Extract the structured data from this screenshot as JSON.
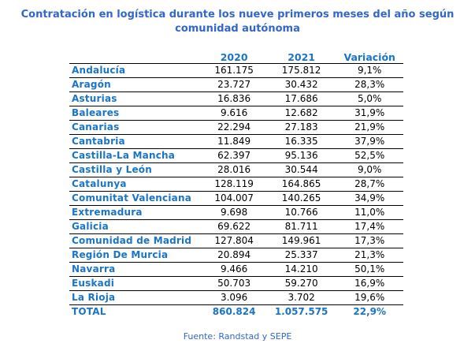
{
  "title": "Contratación en logística durante los nueve primeros meses del año según comunidad autónoma",
  "headers": [
    "",
    "2020",
    "2021",
    "Variación"
  ],
  "rows": [
    [
      "Andalucía",
      "161.175",
      "175.812",
      "9,1%"
    ],
    [
      "Aragón",
      "23.727",
      "30.432",
      "28,3%"
    ],
    [
      "Asturias",
      "16.836",
      "17.686",
      "5,0%"
    ],
    [
      "Baleares",
      "9.616",
      "12.682",
      "31,9%"
    ],
    [
      "Canarias",
      "22.294",
      "27.183",
      "21,9%"
    ],
    [
      "Cantabria",
      "11.849",
      "16.335",
      "37,9%"
    ],
    [
      "Castilla-La Mancha",
      "62.397",
      "95.136",
      "52,5%"
    ],
    [
      "Castilla y León",
      "28.016",
      "30.544",
      "9,0%"
    ],
    [
      "Catalunya",
      "128.119",
      "164.865",
      "28,7%"
    ],
    [
      "Comunitat Valenciana",
      "104.007",
      "140.265",
      "34,9%"
    ],
    [
      "Extremadura",
      "9.698",
      "10.766",
      "11,0%"
    ],
    [
      "Galicia",
      "69.622",
      "81.711",
      "17,4%"
    ],
    [
      "Comunidad de Madrid",
      "127.804",
      "149.961",
      "17,3%"
    ],
    [
      "Región De Murcia",
      "20.894",
      "25.337",
      "21,3%"
    ],
    [
      "Navarra",
      "9.466",
      "14.210",
      "50,1%"
    ],
    [
      "Euskadi",
      "50.703",
      "59.270",
      "16,9%"
    ],
    [
      "La Rioja",
      "3.096",
      "3.702",
      "19,6%"
    ]
  ],
  "total": [
    "TOTAL",
    "860.824",
    "1.057.575",
    "22,9%"
  ],
  "source": "Fuente: Randstad y SEPE",
  "colors": {
    "title": "#3366cc",
    "accent": "#1a74c8"
  }
}
